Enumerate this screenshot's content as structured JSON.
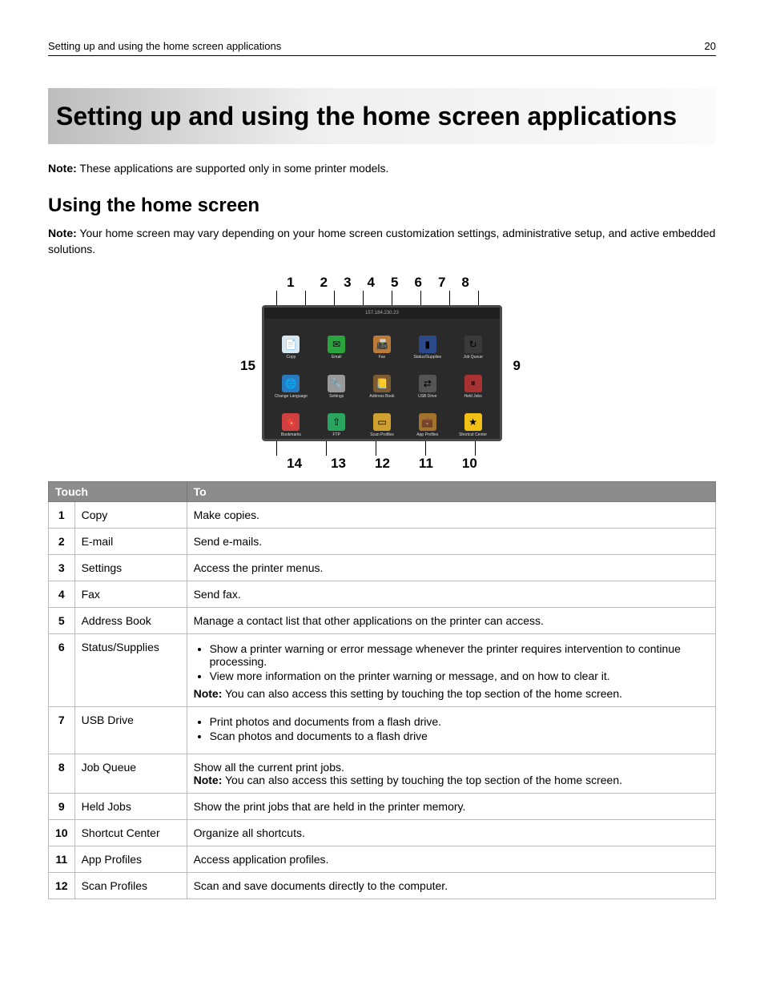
{
  "running_head": {
    "title": "Setting up and using the home screen applications",
    "page_number": "20"
  },
  "chapter_title": "Setting up and using the home screen applications",
  "note1_label": "Note:",
  "note1_text": " These applications are supported only in some printer models.",
  "section_title": "Using the home screen",
  "note2_label": "Note:",
  "note2_text": " Your home screen may vary depending on your home screen customization settings, administrative setup, and active embedded solutions.",
  "diagram": {
    "callouts_top": [
      "1",
      "2",
      "3",
      "4",
      "5",
      "6",
      "7",
      "8"
    ],
    "callouts_bottom": [
      "14",
      "13",
      "12",
      "11",
      "10"
    ],
    "side_left": "15",
    "side_right": "9",
    "status_bar": "157.184.230.23",
    "screen_bg": "#2a2a2a",
    "apps": [
      {
        "label": "Copy",
        "color": "#d7e7f0",
        "glyph": "📄"
      },
      {
        "label": "Email",
        "color": "#2aa53d",
        "glyph": "✉"
      },
      {
        "label": "Fax",
        "color": "#b97a3a",
        "glyph": "📠"
      },
      {
        "label": "Status/Supplies",
        "color": "#2c4a8a",
        "glyph": "▮"
      },
      {
        "label": "Job Queue",
        "color": "#3a3a3a",
        "glyph": "↻"
      },
      {
        "label": "Change Language",
        "color": "#2a7abf",
        "glyph": "🌐"
      },
      {
        "label": "Settings",
        "color": "#9a9a9a",
        "glyph": "🔧"
      },
      {
        "label": "Address Book",
        "color": "#7c5a34",
        "glyph": "📒"
      },
      {
        "label": "USB Drive",
        "color": "#555555",
        "glyph": "⇄"
      },
      {
        "label": "Held Jobs",
        "color": "#a83232",
        "glyph": "⏸"
      },
      {
        "label": "Bookmarks",
        "color": "#d04040",
        "glyph": "🔖"
      },
      {
        "label": "FTP",
        "color": "#2aa560",
        "glyph": "⇧"
      },
      {
        "label": "Scan Profiles",
        "color": "#cfa030",
        "glyph": "▭"
      },
      {
        "label": "App Profiles",
        "color": "#a3722c",
        "glyph": "💼"
      },
      {
        "label": "Shortcut Center",
        "color": "#f0c015",
        "glyph": "★"
      }
    ]
  },
  "table": {
    "head_touch": "Touch",
    "head_to": "To",
    "rows": [
      {
        "num": "1",
        "app": "Copy",
        "body": [
          {
            "type": "text",
            "value": "Make copies."
          }
        ]
      },
      {
        "num": "2",
        "app": "E-mail",
        "body": [
          {
            "type": "text",
            "value": "Send e-mails."
          }
        ]
      },
      {
        "num": "3",
        "app": "Settings",
        "body": [
          {
            "type": "text",
            "value": "Access the printer menus."
          }
        ]
      },
      {
        "num": "4",
        "app": "Fax",
        "body": [
          {
            "type": "text",
            "value": "Send fax."
          }
        ]
      },
      {
        "num": "5",
        "app": "Address Book",
        "body": [
          {
            "type": "text",
            "value": "Manage a contact list that other applications on the printer can access."
          }
        ]
      },
      {
        "num": "6",
        "app": "Status/Supplies",
        "body": [
          {
            "type": "ul",
            "items": [
              "Show a printer warning or error message whenever the printer requires intervention to continue processing.",
              "View more information on the printer warning or message, and on how to clear it."
            ]
          },
          {
            "type": "note",
            "label": "Note:",
            "value": " You can also access this setting by touching the top section of the home screen."
          }
        ]
      },
      {
        "num": "7",
        "app": "USB Drive",
        "body": [
          {
            "type": "ul",
            "items": [
              "Print photos and documents from a flash drive.",
              "Scan photos and documents to a flash drive"
            ]
          }
        ]
      },
      {
        "num": "8",
        "app": "Job Queue",
        "body": [
          {
            "type": "text",
            "value": "Show all the current print jobs."
          },
          {
            "type": "note",
            "label": "Note:",
            "value": " You can also access this setting by touching the top section of the home screen."
          }
        ]
      },
      {
        "num": "9",
        "app": "Held Jobs",
        "body": [
          {
            "type": "text",
            "value": "Show the print jobs that are held in the printer memory."
          }
        ]
      },
      {
        "num": "10",
        "app": "Shortcut Center",
        "body": [
          {
            "type": "text",
            "value": "Organize all shortcuts."
          }
        ]
      },
      {
        "num": "11",
        "app": "App Profiles",
        "body": [
          {
            "type": "text",
            "value": "Access application profiles."
          }
        ]
      },
      {
        "num": "12",
        "app": "Scan Profiles",
        "body": [
          {
            "type": "text",
            "value": "Scan and save documents directly to the computer."
          }
        ]
      }
    ]
  }
}
